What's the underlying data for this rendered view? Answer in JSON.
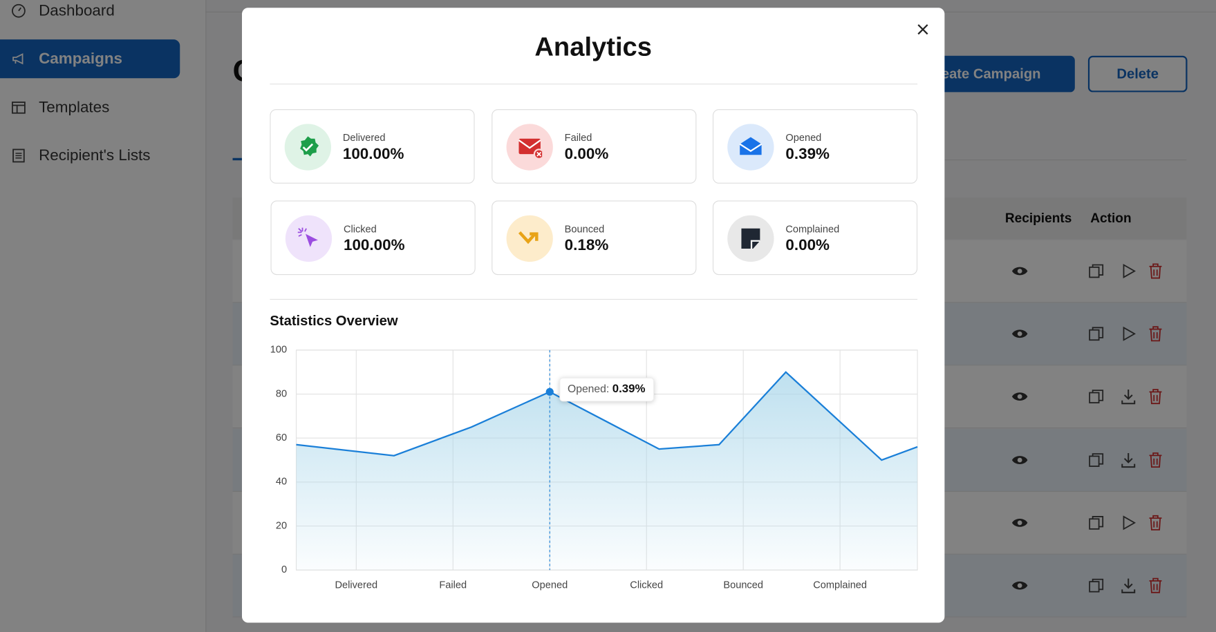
{
  "sidebar": {
    "items": [
      "Dashboard",
      "Campaigns",
      "Templates",
      "Recipient's Lists"
    ]
  },
  "page": {
    "heading": "C",
    "create_button": "Create Campaign",
    "delete_button": "Delete"
  },
  "table": {
    "headers": [
      "Recipients",
      "Action"
    ]
  },
  "modal": {
    "title": "Analytics",
    "cards": [
      {
        "label": "Delivered",
        "value": "100.00%"
      },
      {
        "label": "Failed",
        "value": "0.00%"
      },
      {
        "label": "Opened",
        "value": "0.39%"
      },
      {
        "label": "Clicked",
        "value": "100.00%"
      },
      {
        "label": "Bounced",
        "value": "0.18%"
      },
      {
        "label": "Complained",
        "value": "0.00%"
      }
    ],
    "section_title": "Statistics Overview"
  },
  "chart_data": {
    "type": "area",
    "color": "#1a7fd8",
    "x": [
      -0.62,
      0.39,
      1.19,
      2.0,
      3.13,
      3.75,
      4.44,
      5.43,
      5.8
    ],
    "values": [
      57,
      52,
      65,
      81,
      55,
      57,
      90,
      50,
      56
    ],
    "xlim": [
      -0.62,
      5.8
    ],
    "xticks": [
      {
        "value": 0,
        "label": "Delivered"
      },
      {
        "value": 1,
        "label": "Failed"
      },
      {
        "value": 2,
        "label": "Opened"
      },
      {
        "value": 3,
        "label": "Clicked"
      },
      {
        "value": 4,
        "label": "Bounced"
      },
      {
        "value": 5,
        "label": "Complained"
      }
    ],
    "ylim": [
      0,
      100
    ],
    "yticks": [
      0,
      20,
      40,
      60,
      80,
      100
    ],
    "grid": true,
    "tooltip": {
      "label": "Opened:",
      "value": "0.39%"
    }
  }
}
